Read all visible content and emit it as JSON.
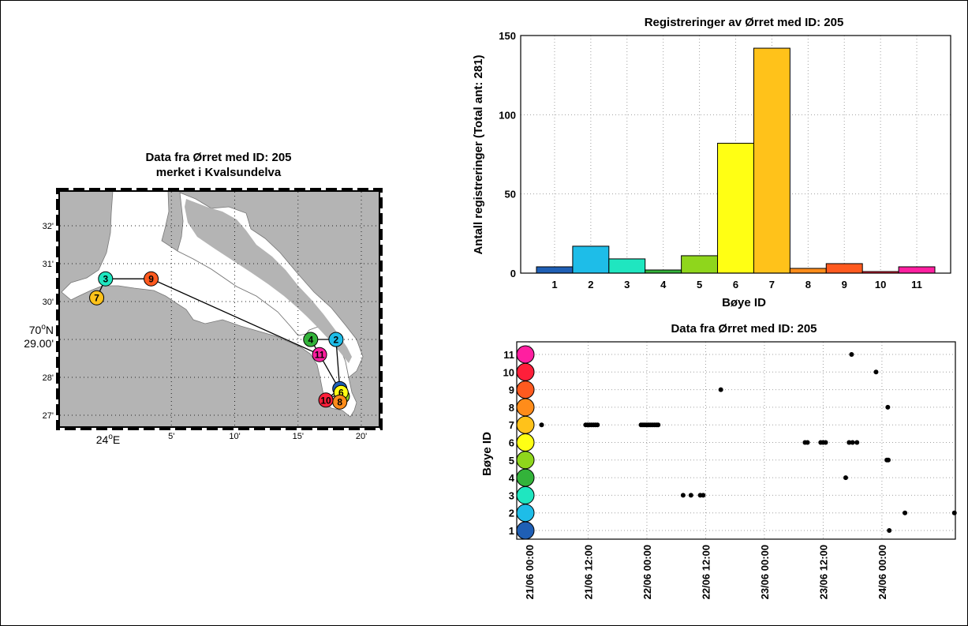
{
  "colors": [
    "#1f5fb5",
    "#1ebde8",
    "#1fe6c0",
    "#33b33a",
    "#8fd61c",
    "#ffff14",
    "#ffc21a",
    "#ff8c1a",
    "#ff5a1f",
    "#ff1f3a",
    "#ff1fa0"
  ],
  "map": {
    "title_line1": "Data fra Ørret med ID: 205",
    "title_line2": "merket i Kvalsundelva",
    "lat_ticks": [
      "27'",
      "28'",
      "29.00'",
      "30'",
      "31'",
      "32'"
    ],
    "lat_prefix": "70",
    "lat_suffix": "N",
    "lon_ticks": [
      "5'",
      "10'",
      "15'",
      "20'"
    ],
    "lon_origin": "24",
    "lon_suffix": "E",
    "deg_symbol": "o",
    "buoys": [
      {
        "id": "1",
        "lon": 18.3,
        "lat": 27.7
      },
      {
        "id": "2",
        "lon": 18.0,
        "lat": 29.0
      },
      {
        "id": "3",
        "lon": -0.2,
        "lat": 30.6
      },
      {
        "id": "4",
        "lon": 16.0,
        "lat": 29.0
      },
      {
        "id": "5",
        "lon": 18.5,
        "lat": 27.5
      },
      {
        "id": "6",
        "lon": 18.4,
        "lat": 27.6
      },
      {
        "id": "7",
        "lon": -0.9,
        "lat": 30.1
      },
      {
        "id": "8",
        "lon": 18.3,
        "lat": 27.35
      },
      {
        "id": "9",
        "lon": 3.4,
        "lat": 30.6
      },
      {
        "id": "10",
        "lon": 17.2,
        "lat": 27.4
      },
      {
        "id": "11",
        "lon": 16.7,
        "lat": 28.6
      }
    ],
    "track": [
      "7",
      "3",
      "9",
      "11",
      "6",
      "10",
      "1",
      "2",
      "4",
      "11"
    ]
  },
  "chart_data": [
    {
      "type": "bar",
      "title": "Registreringer av Ørret med ID: 205",
      "xlabel": "Bøye ID",
      "ylabel": "Antall registreringer (Total ant: 281)",
      "categories": [
        "1",
        "2",
        "3",
        "4",
        "5",
        "6",
        "7",
        "8",
        "9",
        "10",
        "11"
      ],
      "values": [
        4,
        17,
        9,
        2,
        11,
        82,
        142,
        3,
        6,
        1,
        4
      ],
      "ylim": [
        0,
        150
      ],
      "yticks": [
        0,
        50,
        100,
        150
      ],
      "grid": true
    },
    {
      "type": "scatter",
      "title": "Data fra Ørret med ID: 205",
      "ylabel": "Bøye ID",
      "yticks": [
        "1",
        "2",
        "3",
        "4",
        "5",
        "6",
        "7",
        "8",
        "9",
        "10",
        "11"
      ],
      "xticks": [
        "21/06 00:00",
        "21/06 12:00",
        "22/06 00:00",
        "22/06 12:00",
        "23/06 00:00",
        "23/06 12:00",
        "24/06 00:00"
      ],
      "xlim_hours": [
        0,
        87
      ],
      "grid": true,
      "points": [
        {
          "t": 2.5,
          "buoy": 7
        },
        {
          "t": 11.5,
          "buoy": 7
        },
        {
          "t": 11.9,
          "buoy": 7
        },
        {
          "t": 12.3,
          "buoy": 7
        },
        {
          "t": 12.7,
          "buoy": 7
        },
        {
          "t": 13.1,
          "buoy": 7
        },
        {
          "t": 13.5,
          "buoy": 7
        },
        {
          "t": 13.9,
          "buoy": 7
        },
        {
          "t": 22.8,
          "buoy": 7
        },
        {
          "t": 23.2,
          "buoy": 7
        },
        {
          "t": 23.6,
          "buoy": 7
        },
        {
          "t": 24.0,
          "buoy": 7
        },
        {
          "t": 24.4,
          "buoy": 7
        },
        {
          "t": 24.8,
          "buoy": 7
        },
        {
          "t": 25.2,
          "buoy": 7
        },
        {
          "t": 25.6,
          "buoy": 7
        },
        {
          "t": 26.0,
          "buoy": 7
        },
        {
          "t": 26.3,
          "buoy": 7
        },
        {
          "t": 31.4,
          "buoy": 3
        },
        {
          "t": 33.0,
          "buoy": 3
        },
        {
          "t": 34.9,
          "buoy": 3
        },
        {
          "t": 35.5,
          "buoy": 3
        },
        {
          "t": 39.1,
          "buoy": 9
        },
        {
          "t": 56.3,
          "buoy": 6
        },
        {
          "t": 56.8,
          "buoy": 6
        },
        {
          "t": 59.5,
          "buoy": 6
        },
        {
          "t": 60.0,
          "buoy": 6
        },
        {
          "t": 60.5,
          "buoy": 6
        },
        {
          "t": 64.6,
          "buoy": 4
        },
        {
          "t": 65.3,
          "buoy": 6
        },
        {
          "t": 66.0,
          "buoy": 6
        },
        {
          "t": 66.9,
          "buoy": 6
        },
        {
          "t": 65.8,
          "buoy": 11
        },
        {
          "t": 70.8,
          "buoy": 10
        },
        {
          "t": 73.2,
          "buoy": 8
        },
        {
          "t": 73.0,
          "buoy": 5
        },
        {
          "t": 73.3,
          "buoy": 5
        },
        {
          "t": 73.5,
          "buoy": 1
        },
        {
          "t": 76.7,
          "buoy": 2
        },
        {
          "t": 86.8,
          "buoy": 2
        }
      ]
    }
  ]
}
